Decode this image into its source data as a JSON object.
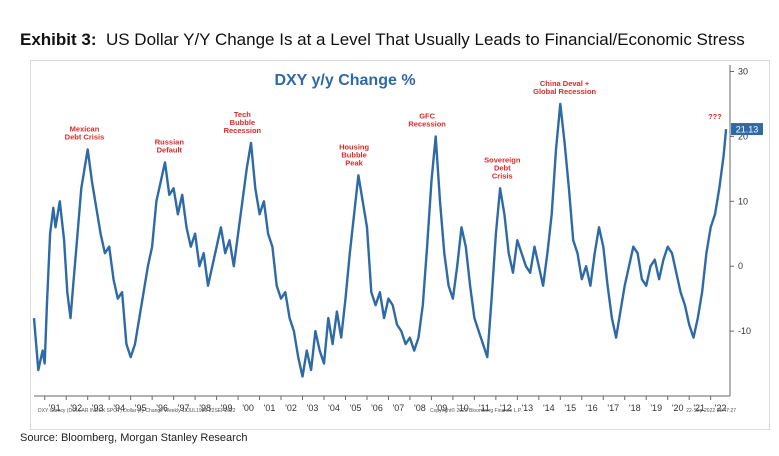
{
  "exhibit": {
    "label": "Exhibit 3:",
    "title": "US Dollar Y/Y Change Is at a Level That Usually Leads to Financial/Economic Stress"
  },
  "source": "Source: Bloomberg, Morgan Stanley Research",
  "footer": {
    "left": "DXY Curncy (DOLLAR INDEX SPOT) Dollar y/y Change Weekly 11JUL1989-22SEP2022",
    "center": "Copyright© 2022 Bloomberg Finance L.P.",
    "right": "22-Sep-2022 15:47:27"
  },
  "colors": {
    "line": "#2e6aa6",
    "annotation": "#d92a2a",
    "title": "#2e6aa6",
    "badge": "#2e6aa6"
  },
  "chart_data": {
    "type": "line",
    "title": "DXY y/y Change %",
    "xlabel": "",
    "ylabel": "",
    "xlim": [
      1990.5,
      2022.9
    ],
    "ylim": [
      -20,
      31
    ],
    "y_ticks": [
      30,
      20,
      10,
      0,
      -10
    ],
    "y_tick_labels": [
      "30",
      "20",
      "10",
      "0",
      "-10"
    ],
    "x_ticks": [
      1991,
      1992,
      1993,
      1994,
      1995,
      1996,
      1997,
      1998,
      1999,
      2000,
      2001,
      2002,
      2003,
      2004,
      2005,
      2006,
      2007,
      2008,
      2009,
      2010,
      2011,
      2012,
      2013,
      2014,
      2015,
      2016,
      2017,
      2018,
      2019,
      2020,
      2021,
      2022
    ],
    "x_tick_labels": [
      "'91",
      "'92",
      "'93",
      "'94",
      "'95",
      "'96",
      "'97",
      "'98",
      "'99",
      "'00",
      "'01",
      "'02",
      "'03",
      "'04",
      "'05",
      "'06",
      "'07",
      "'08",
      "'09",
      "'10",
      "'11",
      "'12",
      "'13",
      "'14",
      "'15",
      "'16",
      "'17",
      "'18",
      "'19",
      "'20",
      "'21",
      "'22"
    ],
    "last_value_label": "21.13",
    "series": [
      {
        "x": [
          1990.5,
          1990.7,
          1990.9,
          1991.0,
          1991.1,
          1991.25,
          1991.4,
          1991.5,
          1991.7,
          1991.9,
          1992.05,
          1992.2,
          1992.35,
          1992.5,
          1992.7,
          1992.85,
          1993.0,
          1993.2,
          1993.4,
          1993.6,
          1993.8,
          1994.0,
          1994.2,
          1994.4,
          1994.6,
          1994.8,
          1995.0,
          1995.2,
          1995.4,
          1995.6,
          1995.8,
          1996.0,
          1996.2,
          1996.4,
          1996.6,
          1996.8,
          1997.0,
          1997.2,
          1997.4,
          1997.6,
          1997.8,
          1998.0,
          1998.2,
          1998.4,
          1998.6,
          1998.8,
          1999.0,
          1999.2,
          1999.4,
          1999.6,
          1999.8,
          2000.0,
          2000.2,
          2000.4,
          2000.6,
          2000.8,
          2001.0,
          2001.2,
          2001.4,
          2001.6,
          2001.8,
          2002.0,
          2002.2,
          2002.4,
          2002.6,
          2002.8,
          2003.0,
          2003.2,
          2003.4,
          2003.6,
          2003.8,
          2004.0,
          2004.2,
          2004.4,
          2004.6,
          2004.8,
          2005.0,
          2005.2,
          2005.4,
          2005.6,
          2005.8,
          2006.0,
          2006.2,
          2006.4,
          2006.6,
          2006.8,
          2007.0,
          2007.2,
          2007.4,
          2007.6,
          2007.8,
          2008.0,
          2008.2,
          2008.4,
          2008.6,
          2008.8,
          2009.0,
          2009.2,
          2009.4,
          2009.6,
          2009.8,
          2010.0,
          2010.2,
          2010.4,
          2010.6,
          2010.8,
          2011.0,
          2011.2,
          2011.4,
          2011.6,
          2011.8,
          2012.0,
          2012.2,
          2012.4,
          2012.6,
          2012.8,
          2013.0,
          2013.2,
          2013.4,
          2013.6,
          2013.8,
          2014.0,
          2014.2,
          2014.4,
          2014.6,
          2014.8,
          2015.0,
          2015.2,
          2015.4,
          2015.6,
          2015.8,
          2016.0,
          2016.2,
          2016.4,
          2016.6,
          2016.8,
          2017.0,
          2017.2,
          2017.4,
          2017.6,
          2017.8,
          2018.0,
          2018.2,
          2018.4,
          2018.6,
          2018.8,
          2019.0,
          2019.2,
          2019.4,
          2019.6,
          2019.8,
          2020.0,
          2020.2,
          2020.4,
          2020.6,
          2020.8,
          2021.0,
          2021.2,
          2021.4,
          2021.6,
          2021.8,
          2022.0,
          2022.2,
          2022.4,
          2022.6,
          2022.72
        ],
        "y": [
          -8,
          -16,
          -13,
          -15,
          -6,
          5,
          9,
          6,
          10,
          4,
          -4,
          -8,
          -2,
          4,
          12,
          15,
          18,
          13,
          9,
          5,
          2,
          3,
          -2,
          -5,
          -4,
          -12,
          -14,
          -12,
          -8,
          -4,
          0,
          3,
          10,
          13,
          16,
          11,
          12,
          8,
          11,
          6,
          3,
          5,
          0,
          2,
          -3,
          0,
          3,
          6,
          2,
          4,
          0,
          5,
          10,
          15,
          19,
          12,
          8,
          10,
          5,
          3,
          -3,
          -5,
          -4,
          -8,
          -10,
          -14,
          -17,
          -13,
          -16,
          -10,
          -13,
          -15,
          -8,
          -12,
          -7,
          -11,
          -5,
          2,
          8,
          14,
          10,
          6,
          -4,
          -6,
          -4,
          -8,
          -5,
          -6,
          -9,
          -10,
          -12,
          -11,
          -13,
          -11,
          -6,
          3,
          13,
          20,
          10,
          2,
          -3,
          -5,
          0,
          6,
          3,
          -3,
          -8,
          -10,
          -12,
          -14,
          -5,
          5,
          12,
          8,
          2,
          -1,
          4,
          2,
          0,
          -1,
          3,
          0,
          -3,
          2,
          8,
          18,
          25,
          19,
          12,
          4,
          2,
          -2,
          0,
          -3,
          2,
          6,
          3,
          -3,
          -8,
          -11,
          -7,
          -3,
          0,
          3,
          2,
          -2,
          -3,
          0,
          1,
          -2,
          1,
          3,
          2,
          -1,
          -4,
          -6,
          -9,
          -11,
          -8,
          -4,
          2,
          6,
          8,
          12,
          17,
          21.13
        ]
      }
    ],
    "annotations": [
      {
        "x": 1992.85,
        "lines": [
          "Mexican",
          "Debt Crisis"
        ]
      },
      {
        "x": 1996.8,
        "lines": [
          "Russian",
          "Default"
        ]
      },
      {
        "x": 2000.2,
        "lines": [
          "Tech",
          "Bubble",
          "Recession"
        ]
      },
      {
        "x": 2005.4,
        "lines": [
          "Housing",
          "Bubble",
          "Peak"
        ]
      },
      {
        "x": 2008.8,
        "lines": [
          "GFC",
          "Recession"
        ]
      },
      {
        "x": 2012.3,
        "lines": [
          "Sovereign",
          "Debt",
          "Crisis"
        ]
      },
      {
        "x": 2015.2,
        "lines": [
          "China Deval +",
          "Global Recession"
        ]
      },
      {
        "x": 2022.2,
        "lines": [
          "???"
        ]
      }
    ]
  }
}
